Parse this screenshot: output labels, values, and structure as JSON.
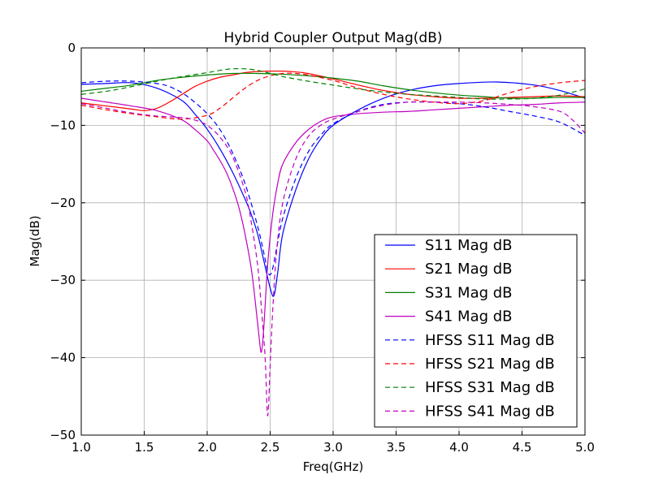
{
  "chart_data": {
    "type": "line",
    "title": "Hybrid Coupler Output Mag(dB)",
    "xlabel": "Freq(GHz)",
    "ylabel": "Mag(dB)",
    "xlim": [
      1.0,
      5.0
    ],
    "ylim": [
      -50,
      0
    ],
    "xticks": [
      "1.0",
      "1.5",
      "2.0",
      "2.5",
      "3.0",
      "3.5",
      "4.0",
      "4.5",
      "5.0"
    ],
    "yticks": [
      "0",
      "−10",
      "−20",
      "−30",
      "−40",
      "−50"
    ],
    "grid": true,
    "legend_position": "lower-right",
    "series": [
      {
        "name": "S11 Mag dB",
        "color": "#0000ff",
        "dashed": false,
        "x": [
          1.0,
          1.2,
          1.4,
          1.6,
          1.8,
          1.9,
          2.0,
          2.1,
          2.2,
          2.3,
          2.35,
          2.4,
          2.45,
          2.5,
          2.53,
          2.56,
          2.6,
          2.7,
          2.8,
          2.9,
          3.0,
          3.2,
          3.4,
          3.6,
          3.8,
          4.0,
          4.3,
          4.6,
          4.8,
          5.0
        ],
        "y": [
          -4.7,
          -4.6,
          -4.5,
          -5.2,
          -6.8,
          -8.5,
          -10.5,
          -13.0,
          -16.0,
          -19.5,
          -21.5,
          -24.0,
          -27.5,
          -31.0,
          -32.0,
          -29.0,
          -24.0,
          -18.5,
          -14.5,
          -11.8,
          -10.0,
          -8.0,
          -6.5,
          -5.5,
          -4.9,
          -4.6,
          -4.4,
          -4.8,
          -5.5,
          -6.5
        ]
      },
      {
        "name": "S21 Mag dB",
        "color": "#ff0000",
        "dashed": false,
        "x": [
          1.0,
          1.2,
          1.4,
          1.5,
          1.6,
          1.7,
          1.8,
          1.9,
          2.0,
          2.1,
          2.2,
          2.3,
          2.4,
          2.5,
          2.6,
          2.7,
          2.8,
          3.0,
          3.2,
          3.4,
          3.6,
          3.8,
          4.0,
          4.2,
          4.4,
          4.6,
          4.8,
          5.0
        ],
        "y": [
          -7.1,
          -7.5,
          -7.9,
          -8.1,
          -7.8,
          -7.0,
          -6.0,
          -5.0,
          -4.3,
          -3.8,
          -3.5,
          -3.2,
          -3.05,
          -3.0,
          -3.0,
          -3.1,
          -3.3,
          -4.0,
          -4.8,
          -5.5,
          -6.0,
          -6.3,
          -6.5,
          -6.5,
          -6.4,
          -6.3,
          -6.2,
          -6.3
        ]
      },
      {
        "name": "S31 Mag dB",
        "color": "#008000",
        "dashed": false,
        "x": [
          1.0,
          1.2,
          1.4,
          1.6,
          1.8,
          2.0,
          2.2,
          2.4,
          2.6,
          2.8,
          3.0,
          3.2,
          3.4,
          3.6,
          3.8,
          4.0,
          4.2,
          4.4,
          4.6,
          4.8,
          5.0
        ],
        "y": [
          -5.6,
          -5.2,
          -4.8,
          -4.2,
          -3.8,
          -3.5,
          -3.3,
          -3.3,
          -3.4,
          -3.6,
          -3.9,
          -4.3,
          -4.9,
          -5.4,
          -5.8,
          -6.1,
          -6.3,
          -6.5,
          -6.5,
          -6.4,
          -6.4
        ]
      },
      {
        "name": "S41 Mag dB",
        "color": "#bf00bf",
        "dashed": false,
        "x": [
          1.0,
          1.2,
          1.4,
          1.6,
          1.8,
          1.9,
          2.0,
          2.05,
          2.1,
          2.15,
          2.2,
          2.25,
          2.3,
          2.35,
          2.38,
          2.41,
          2.43,
          2.45,
          2.48,
          2.52,
          2.56,
          2.6,
          2.7,
          2.8,
          2.9,
          3.0,
          3.2,
          3.4,
          3.6,
          3.8,
          4.0,
          4.2,
          4.4,
          4.6,
          4.8,
          5.0
        ],
        "y": [
          -6.5,
          -7.0,
          -7.5,
          -8.1,
          -9.3,
          -10.5,
          -12.0,
          -13.2,
          -14.5,
          -16.0,
          -18.0,
          -20.5,
          -24.0,
          -28.5,
          -32.5,
          -37.0,
          -39.3,
          -36.0,
          -28.0,
          -21.5,
          -17.5,
          -15.0,
          -12.3,
          -10.6,
          -9.5,
          -8.9,
          -8.5,
          -8.3,
          -8.2,
          -8.0,
          -7.8,
          -7.6,
          -7.4,
          -7.3,
          -7.1,
          -7.0
        ]
      },
      {
        "name": "HFSS S11 Mag dB",
        "color": "#0000ff",
        "dashed": true,
        "x": [
          1.0,
          1.2,
          1.4,
          1.6,
          1.7,
          1.8,
          1.9,
          2.0,
          2.1,
          2.2,
          2.3,
          2.4,
          2.45,
          2.48,
          2.5,
          2.52,
          2.55,
          2.6,
          2.7,
          2.8,
          2.9,
          3.0,
          3.2,
          3.4,
          3.6,
          3.8,
          4.0,
          4.2,
          4.4,
          4.6,
          4.8,
          5.0
        ],
        "y": [
          -4.5,
          -4.3,
          -4.3,
          -4.6,
          -5.0,
          -5.8,
          -7.0,
          -8.5,
          -10.5,
          -13.5,
          -17.5,
          -23.0,
          -26.5,
          -28.8,
          -29.3,
          -28.5,
          -26.0,
          -22.0,
          -17.0,
          -13.5,
          -11.3,
          -9.8,
          -8.2,
          -7.3,
          -7.0,
          -7.0,
          -7.2,
          -7.6,
          -8.2,
          -8.8,
          -9.6,
          -11.3
        ]
      },
      {
        "name": "HFSS S21 Mag dB",
        "color": "#ff0000",
        "dashed": true,
        "x": [
          1.0,
          1.2,
          1.4,
          1.6,
          1.8,
          2.0,
          2.1,
          2.2,
          2.3,
          2.4,
          2.5,
          2.6,
          2.7,
          2.8,
          3.0,
          3.2,
          3.4,
          3.6,
          3.8,
          4.0,
          4.2,
          4.4,
          4.6,
          4.8,
          5.0
        ],
        "y": [
          -7.4,
          -8.0,
          -8.5,
          -8.9,
          -9.2,
          -8.7,
          -7.8,
          -6.5,
          -5.2,
          -4.2,
          -3.6,
          -3.3,
          -3.3,
          -3.5,
          -4.2,
          -5.2,
          -6.0,
          -6.6,
          -7.0,
          -7.2,
          -6.8,
          -5.8,
          -5.0,
          -4.5,
          -4.2
        ]
      },
      {
        "name": "HFSS S31 Mag dB",
        "color": "#008000",
        "dashed": true,
        "x": [
          1.0,
          1.2,
          1.4,
          1.6,
          1.8,
          2.0,
          2.1,
          2.2,
          2.3,
          2.4,
          2.5,
          2.6,
          2.8,
          3.0,
          3.2,
          3.4,
          3.6,
          3.8,
          4.0,
          4.2,
          4.4,
          4.6,
          4.8,
          5.0
        ],
        "y": [
          -6.0,
          -5.6,
          -5.0,
          -4.3,
          -3.7,
          -3.2,
          -2.9,
          -2.7,
          -2.7,
          -2.9,
          -3.3,
          -3.7,
          -4.3,
          -4.8,
          -5.3,
          -5.7,
          -6.0,
          -6.2,
          -6.4,
          -6.6,
          -6.6,
          -6.5,
          -6.1,
          -5.3
        ]
      },
      {
        "name": "HFSS S41 Mag dB",
        "color": "#bf00bf",
        "dashed": true,
        "x": [
          1.0,
          1.2,
          1.4,
          1.6,
          1.8,
          1.9,
          2.0,
          2.1,
          2.2,
          2.3,
          2.35,
          2.4,
          2.43,
          2.46,
          2.48,
          2.5,
          2.52,
          2.55,
          2.6,
          2.7,
          2.8,
          2.9,
          3.0,
          3.2,
          3.4,
          3.6,
          3.8,
          4.0,
          4.2,
          4.4,
          4.6,
          4.8,
          4.9,
          5.0
        ],
        "y": [
          -7.2,
          -7.8,
          -8.4,
          -8.8,
          -9.0,
          -9.3,
          -10.0,
          -11.5,
          -14.0,
          -18.5,
          -22.5,
          -28.0,
          -33.5,
          -40.0,
          -47.5,
          -41.0,
          -34.0,
          -26.5,
          -20.0,
          -14.5,
          -11.5,
          -10.0,
          -9.2,
          -8.2,
          -7.4,
          -7.0,
          -7.0,
          -7.0,
          -7.1,
          -7.3,
          -7.6,
          -8.2,
          -9.3,
          -11.0
        ]
      }
    ]
  }
}
